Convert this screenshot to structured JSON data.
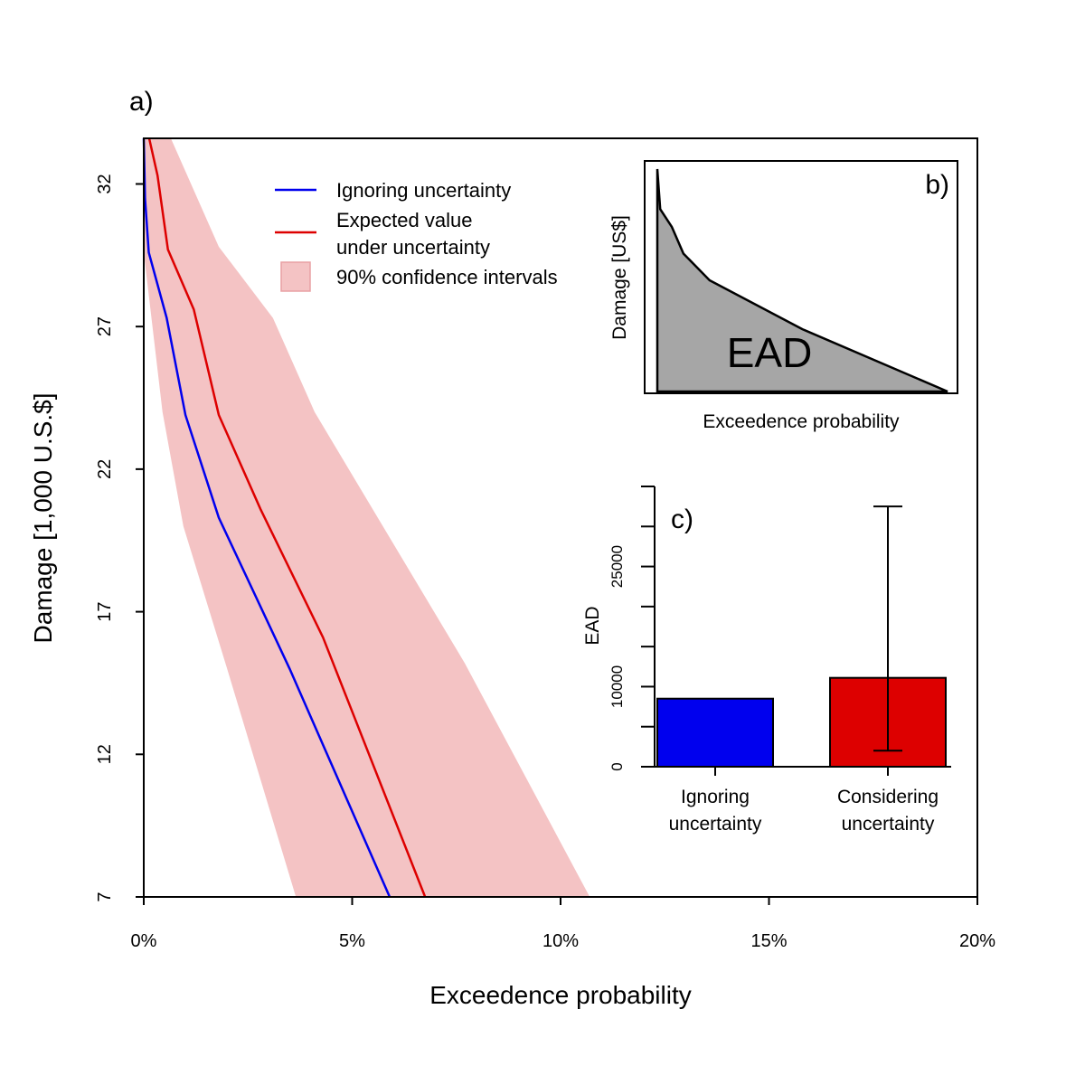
{
  "chart_data": [
    {
      "panel": "a)",
      "type": "line",
      "xlabel": "Exceedence probability",
      "ylabel": "Damage [1,000 U.S.$]",
      "xlim": [
        0,
        0.2
      ],
      "ylim": [
        7,
        33.6
      ],
      "xticks": [
        0,
        0.05,
        0.1,
        0.15,
        0.2
      ],
      "xtick_labels": [
        "0%",
        "5%",
        "10%",
        "15%",
        "20%"
      ],
      "yticks": [
        7,
        12,
        17,
        22,
        27,
        32
      ],
      "ytick_labels": [
        "7",
        "12",
        "17",
        "22",
        "27",
        "32"
      ],
      "series": [
        {
          "name": "Ignoring uncertainty",
          "color": "#0000ee",
          "points": [
            [
              0.0,
              33.6
            ],
            [
              0.0003,
              31.5
            ],
            [
              0.0012,
              29.6
            ],
            [
              0.0055,
              27.3
            ],
            [
              0.01,
              23.9
            ],
            [
              0.018,
              20.3
            ],
            [
              0.035,
              15.0
            ],
            [
              0.059,
              7.0
            ]
          ]
        },
        {
          "name": "Expected value\nunder uncertainty",
          "color": "#dd0000",
          "points": [
            [
              0.0013,
              33.6
            ],
            [
              0.0033,
              32.3
            ],
            [
              0.0058,
              29.7
            ],
            [
              0.012,
              27.6
            ],
            [
              0.018,
              23.9
            ],
            [
              0.028,
              20.6
            ],
            [
              0.043,
              16.1
            ],
            [
              0.0675,
              7.0
            ]
          ]
        }
      ],
      "band": {
        "name": "90% confidence intervals",
        "color": "#f4c3c4",
        "upper": [
          [
            0.0065,
            33.6
          ],
          [
            0.018,
            29.8
          ],
          [
            0.031,
            27.3
          ],
          [
            0.041,
            24.0
          ],
          [
            0.077,
            15.2
          ],
          [
            0.107,
            7.0
          ]
        ],
        "lower": [
          [
            0.0,
            33.6
          ],
          [
            0.0,
            29.6
          ],
          [
            0.0045,
            24.0
          ],
          [
            0.0095,
            20.0
          ],
          [
            0.02,
            15.0
          ],
          [
            0.0365,
            7.0
          ]
        ]
      },
      "legend": [
        "Ignoring uncertainty",
        "Expected value",
        "under uncertainty",
        "90% confidence intervals"
      ],
      "legend_position": "top-center"
    },
    {
      "panel": "b)",
      "type": "area",
      "xlabel": "Exceedence probability",
      "ylabel": "Damage [US$]",
      "annotation": "EAD",
      "color": "#a6a6a6",
      "curve": [
        [
          0.0,
          1.0
        ],
        [
          0.01,
          0.82
        ],
        [
          0.05,
          0.74
        ],
        [
          0.09,
          0.62
        ],
        [
          0.18,
          0.5
        ],
        [
          0.5,
          0.28
        ],
        [
          1.0,
          0.0
        ]
      ]
    },
    {
      "panel": "c)",
      "type": "bar",
      "ylabel": "EAD",
      "categories": [
        "Ignoring\nuncertainty",
        "Considering\nuncertainty"
      ],
      "category_lines": [
        [
          "Ignoring",
          "uncertainty"
        ],
        [
          "Considering",
          "uncertainty"
        ]
      ],
      "values": [
        8500,
        11100
      ],
      "colors": [
        "#0000ee",
        "#dd0000"
      ],
      "error_bar": {
        "category": "Considering\nuncertainty",
        "low": 2000,
        "high": 32500
      },
      "ylim": [
        0,
        35000
      ],
      "yticks": [
        0,
        5000,
        10000,
        15000,
        20000,
        25000,
        30000,
        35000
      ],
      "ytick_labels": [
        "0",
        "",
        "10000",
        "",
        "",
        "25000",
        "",
        ""
      ]
    }
  ]
}
